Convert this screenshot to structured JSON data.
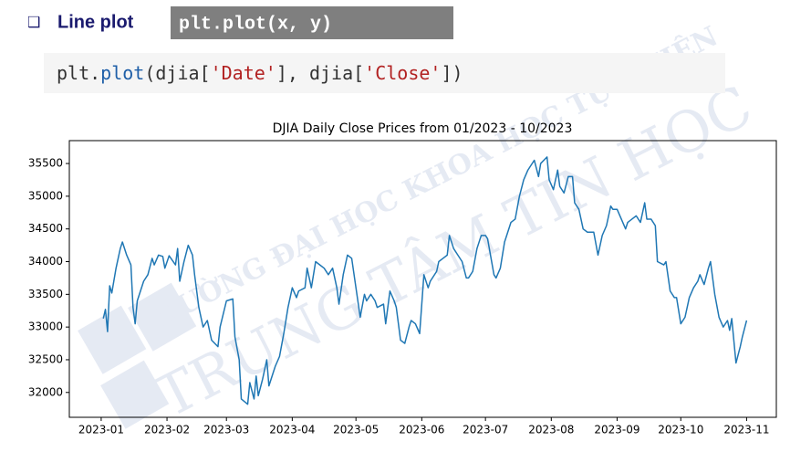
{
  "header": {
    "bullet": "❑",
    "title": "Line plot",
    "code": "plt.plot(x, y)"
  },
  "code_cell": {
    "tokens": [
      "plt.",
      "plot",
      "(djia[",
      "'Date'",
      "], djia[",
      "'Close'",
      "])"
    ]
  },
  "watermark": {
    "line1": "TRƯỜNG ĐẠI HỌC KHOA HỌC TỰ NHIÊN",
    "line2": "TRUNG TÂM TIN HỌC"
  },
  "chart_data": {
    "type": "line",
    "title": "DJIA Daily Close Prices from 01/2023 - 10/2023",
    "color": "#1f77b4",
    "grid": false,
    "xlim": [
      -15,
      318
    ],
    "ylim": [
      31620,
      35850
    ],
    "xticks": [
      {
        "value": 0,
        "label": "2023-01"
      },
      {
        "value": 31,
        "label": "2023-02"
      },
      {
        "value": 59,
        "label": "2023-03"
      },
      {
        "value": 90,
        "label": "2023-04"
      },
      {
        "value": 120,
        "label": "2023-05"
      },
      {
        "value": 151,
        "label": "2023-06"
      },
      {
        "value": 181,
        "label": "2023-07"
      },
      {
        "value": 212,
        "label": "2023-08"
      },
      {
        "value": 243,
        "label": "2023-09"
      },
      {
        "value": 273,
        "label": "2023-10"
      },
      {
        "value": 304,
        "label": "2023-11"
      }
    ],
    "yticks": [
      32000,
      32500,
      33000,
      33500,
      34000,
      34500,
      35000,
      35500
    ],
    "x": [
      1,
      2,
      3,
      4,
      5,
      7,
      9,
      10,
      12,
      14,
      15,
      16,
      17,
      20,
      22,
      24,
      25,
      27,
      29,
      30,
      32,
      35,
      36,
      37,
      39,
      41,
      43,
      44,
      46,
      48,
      50,
      52,
      55,
      56,
      59,
      62,
      63,
      65,
      66,
      69,
      70,
      72,
      73,
      74,
      76,
      78,
      79,
      81,
      82,
      84,
      86,
      88,
      90,
      92,
      93,
      96,
      97,
      99,
      101,
      103,
      105,
      107,
      109,
      111,
      112,
      114,
      116,
      118,
      120,
      122,
      124,
      125,
      127,
      129,
      130,
      133,
      134,
      136,
      138,
      139,
      141,
      143,
      145,
      146,
      148,
      150,
      152,
      154,
      155,
      158,
      159,
      161,
      163,
      164,
      166,
      168,
      170,
      172,
      173,
      175,
      177,
      179,
      181,
      182,
      185,
      186,
      188,
      190,
      191,
      193,
      195,
      197,
      199,
      201,
      202,
      204,
      206,
      207,
      210,
      211,
      213,
      215,
      216,
      218,
      220,
      222,
      223,
      225,
      227,
      229,
      231,
      232,
      234,
      236,
      238,
      240,
      241,
      243,
      245,
      247,
      248,
      250,
      252,
      254,
      256,
      257,
      259,
      261,
      262,
      265,
      266,
      268,
      270,
      271,
      273,
      275,
      277,
      279,
      281,
      282,
      284,
      286,
      287,
      289,
      291,
      293,
      295,
      296,
      297,
      299,
      301,
      302,
      304
    ],
    "series": [
      {
        "values": [
          33130,
          33270,
          32930,
          33630,
          33520,
          33900,
          34200,
          34300,
          34100,
          33950,
          33300,
          33050,
          33400,
          33700,
          33800,
          34050,
          33950,
          34100,
          34080,
          33900,
          34090,
          33950,
          34200,
          33700,
          34000,
          34250,
          34100,
          33800,
          33300,
          33000,
          33100,
          32800,
          32700,
          33000,
          33400,
          33430,
          32850,
          32500,
          31900,
          31820,
          32150,
          31900,
          32250,
          31950,
          32200,
          32500,
          32100,
          32300,
          32400,
          32550,
          32900,
          33300,
          33600,
          33450,
          33550,
          33600,
          33900,
          33600,
          34000,
          33950,
          33900,
          33800,
          33900,
          33600,
          33350,
          33800,
          34100,
          34050,
          33600,
          33150,
          33500,
          33400,
          33500,
          33400,
          33300,
          33350,
          33050,
          33550,
          33400,
          33300,
          32800,
          32750,
          33000,
          33100,
          33050,
          32900,
          33800,
          33600,
          33700,
          33850,
          34000,
          34050,
          34100,
          34400,
          34200,
          34100,
          34000,
          33750,
          33750,
          33850,
          34200,
          34400,
          34400,
          34350,
          33800,
          33750,
          33900,
          34300,
          34400,
          34600,
          34650,
          35000,
          35250,
          35400,
          35450,
          35550,
          35300,
          35500,
          35600,
          35250,
          35100,
          35400,
          35150,
          35050,
          35300,
          35300,
          34900,
          34800,
          34500,
          34450,
          34450,
          34450,
          34100,
          34400,
          34550,
          34850,
          34800,
          34800,
          34650,
          34500,
          34600,
          34650,
          34700,
          34600,
          34900,
          34650,
          34650,
          34550,
          34000,
          33950,
          34000,
          33550,
          33450,
          33450,
          33050,
          33150,
          33450,
          33600,
          33700,
          33800,
          33650,
          33900,
          34000,
          33500,
          33150,
          33000,
          33100,
          32950,
          33130,
          32450,
          32700,
          32850,
          33100
        ]
      }
    ]
  }
}
